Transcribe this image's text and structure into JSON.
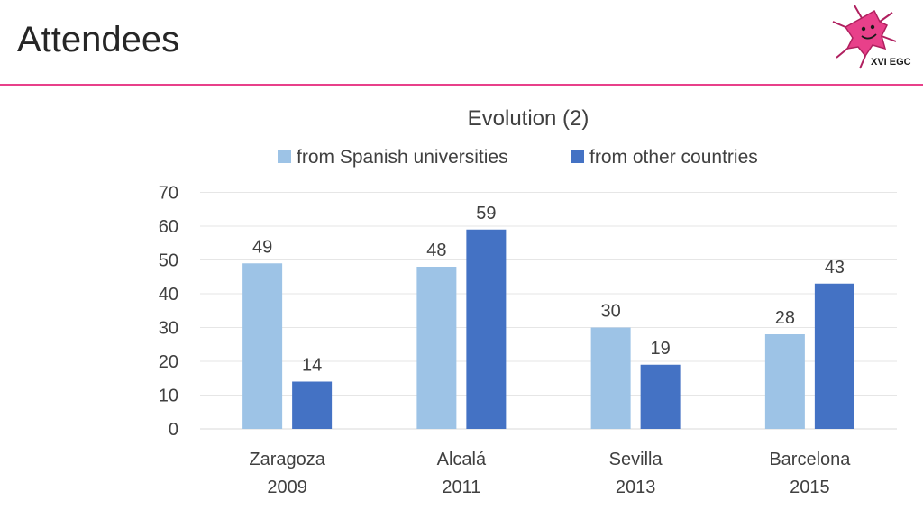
{
  "slide": {
    "title": "Attendees",
    "logo_text": "XVI EGC",
    "accent_color": "#e8408a"
  },
  "chart_data": {
    "type": "bar",
    "title": "Evolution (2)",
    "categories": [
      [
        "Zaragoza",
        "2009"
      ],
      [
        "Alcalá",
        "2011"
      ],
      [
        "Sevilla",
        "2013"
      ],
      [
        "Barcelona",
        "2015"
      ]
    ],
    "series": [
      {
        "name": "from Spanish universities",
        "values": [
          49,
          48,
          30,
          28
        ],
        "color": "#9dc3e6"
      },
      {
        "name": "from other countries",
        "values": [
          14,
          59,
          19,
          43
        ],
        "color": "#4472c4"
      }
    ],
    "ylim": [
      0,
      70
    ],
    "yticks": [
      0,
      10,
      20,
      30,
      40,
      50,
      60,
      70
    ],
    "grid": true,
    "legend": "top",
    "data_labels": true
  }
}
